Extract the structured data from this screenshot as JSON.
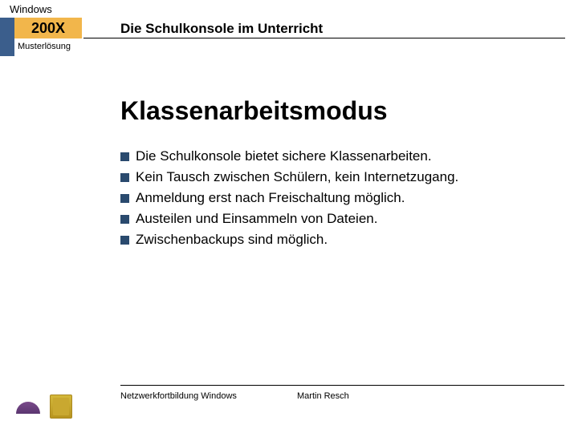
{
  "header": {
    "os_label": "Windows",
    "year": "200X",
    "subtitle": "Musterlösung",
    "title": "Die Schulkonsole im Unterricht"
  },
  "content": {
    "title": "Klassenarbeitsmodus",
    "bullets": [
      "Die Schulkonsole bietet sichere Klassenarbeiten.",
      "Kein Tausch zwischen Schülern, kein Internetzugang.",
      "Anmeldung erst nach Freischaltung möglich.",
      "Austeilen und Einsammeln von Dateien.",
      "Zwischenbackups sind möglich."
    ]
  },
  "footer": {
    "left": "Netzwerkfortbildung Windows",
    "right": "Martin Resch"
  },
  "style": {
    "accent_orange": "#f2b64b",
    "accent_blue": "#3b5e8c",
    "bullet_color": "#2a4a6e",
    "text_color": "#000000",
    "background": "#ffffff",
    "title_fontsize_pt": 32,
    "body_fontsize_pt": 17,
    "header_title_fontsize_pt": 17,
    "footer_fontsize_pt": 11
  }
}
